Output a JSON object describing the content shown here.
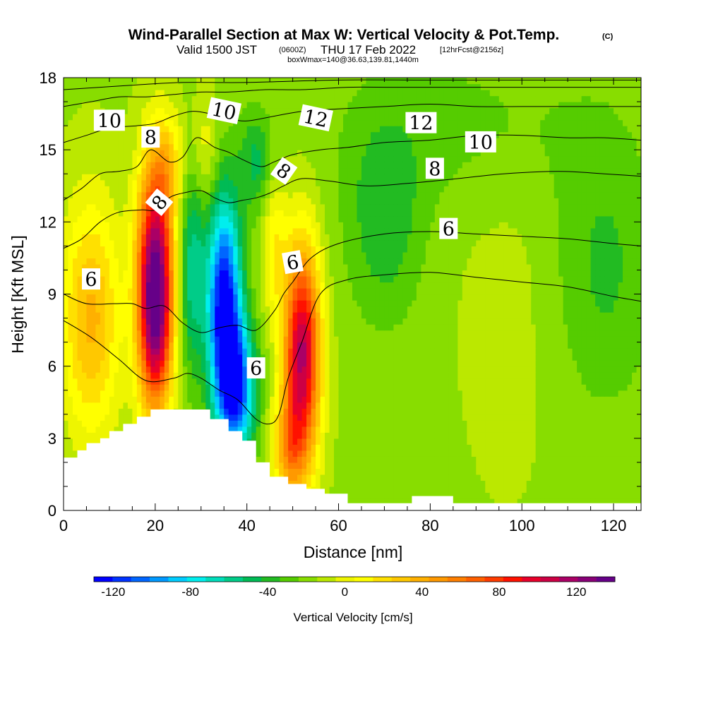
{
  "title": {
    "main": "Wind-Parallel Section at Max W: Vertical Velocity & Pot.Temp.",
    "copyright": "(C)",
    "valid_prefix": "Valid 1500 JST",
    "valid_utc": "(0600Z)",
    "valid_date": "THU 17 Feb 2022",
    "forecast": "[12hrFcst@2156z]",
    "box_info": "boxWmax=140@36.63,139.81,1440m"
  },
  "chart_data": {
    "type": "heatmap",
    "xlabel": "Distance [nm]",
    "ylabel": "Height [Kft MSL]",
    "xlim": [
      0,
      126
    ],
    "ylim": [
      0,
      18
    ],
    "x_ticks": [
      0,
      20,
      40,
      60,
      80,
      100,
      120
    ],
    "y_ticks": [
      0,
      3,
      6,
      9,
      12,
      15,
      18
    ],
    "colorbar": {
      "label": "Vertical Velocity [cm/s]",
      "min": -130,
      "max": 140,
      "step": 10,
      "tick_values": [
        -120,
        -80,
        -40,
        0,
        40,
        80,
        120
      ],
      "colors": [
        "#0000ff",
        "#0033ff",
        "#0066ff",
        "#0099ff",
        "#00ccff",
        "#00eeee",
        "#00ddbb",
        "#00cc88",
        "#00bb55",
        "#22bb22",
        "#55cc00",
        "#88dd00",
        "#bbe800",
        "#eef500",
        "#ffff00",
        "#ffe000",
        "#ffc800",
        "#ffb000",
        "#ff9900",
        "#ff7f00",
        "#ff6000",
        "#ff3c00",
        "#ff1100",
        "#e8002a",
        "#cc0044",
        "#aa0066",
        "#880077",
        "#660088"
      ]
    },
    "w_field_centers": [
      {
        "x": 6,
        "y": 8.0,
        "w": 55,
        "sx": 4.5,
        "sy": 3.5
      },
      {
        "x": 20,
        "y": 10.0,
        "w": 140,
        "sx": 2.8,
        "sy": 3.2
      },
      {
        "x": 20,
        "y": 7.0,
        "w": 60,
        "sx": 2.5,
        "sy": 2.5
      },
      {
        "x": 23,
        "y": 14.5,
        "w": 30,
        "sx": 2.5,
        "sy": 1.5
      },
      {
        "x": 31,
        "y": 15.0,
        "w": 20,
        "sx": 2.0,
        "sy": 1.8
      },
      {
        "x": 35,
        "y": 8.5,
        "w": -120,
        "sx": 2.6,
        "sy": 3.2
      },
      {
        "x": 38,
        "y": 5.0,
        "w": -90,
        "sx": 2.8,
        "sy": 2.0
      },
      {
        "x": 28,
        "y": 10.0,
        "w": -45,
        "sx": 2.0,
        "sy": 3.0
      },
      {
        "x": 52,
        "y": 6.5,
        "w": 135,
        "sx": 2.8,
        "sy": 3.2
      },
      {
        "x": 46,
        "y": 11.0,
        "w": 30,
        "sx": 1.8,
        "sy": 2.0
      },
      {
        "x": 49,
        "y": 2.5,
        "w": 50,
        "sx": 2.5,
        "sy": 1.5
      },
      {
        "x": 42,
        "y": 14.5,
        "w": -30,
        "sx": 2.5,
        "sy": 1.5
      },
      {
        "x": 70,
        "y": 12.0,
        "w": -25,
        "sx": 6.0,
        "sy": 3.0
      },
      {
        "x": 97,
        "y": 9.0,
        "w": 6,
        "sx": 8.0,
        "sy": 6.0
      },
      {
        "x": 118,
        "y": 10.0,
        "w": -20,
        "sx": 8.0,
        "sy": 4.0
      },
      {
        "x": 88,
        "y": 16.0,
        "w": -12,
        "sx": 20.0,
        "sy": 2.5
      }
    ],
    "w_background": -12,
    "terrain": [
      [
        0,
        2.2
      ],
      [
        3,
        2.5
      ],
      [
        5,
        2.8
      ],
      [
        8,
        3.0
      ],
      [
        10,
        3.3
      ],
      [
        13,
        3.6
      ],
      [
        16,
        3.9
      ],
      [
        19,
        4.2
      ],
      [
        26,
        4.2
      ],
      [
        32,
        3.8
      ],
      [
        36,
        3.3
      ],
      [
        39,
        2.9
      ],
      [
        42,
        2.0
      ],
      [
        45,
        1.4
      ],
      [
        49,
        1.1
      ],
      [
        53,
        0.9
      ],
      [
        57,
        0.7
      ],
      [
        62,
        0.3
      ],
      [
        74,
        0.3
      ],
      [
        76,
        0.6
      ],
      [
        84,
        0.6
      ],
      [
        85,
        0.3
      ],
      [
        126,
        0.3
      ]
    ],
    "theta_contours": [
      {
        "level": "6",
        "points": [
          [
            0,
            7.9
          ],
          [
            6,
            7.2
          ],
          [
            12,
            6.3
          ],
          [
            18,
            5.4
          ],
          [
            24,
            5.5
          ],
          [
            27,
            5.7
          ],
          [
            30,
            5.5
          ],
          [
            34,
            5.0
          ],
          [
            38,
            4.6
          ],
          [
            42,
            3.8
          ],
          [
            45,
            3.6
          ],
          [
            47,
            4.0
          ],
          [
            49,
            5.5
          ],
          [
            52,
            7.0
          ],
          [
            56,
            9.0
          ],
          [
            62,
            9.6
          ],
          [
            70,
            9.8
          ],
          [
            80,
            9.9
          ],
          [
            90,
            9.7
          ],
          [
            100,
            9.5
          ],
          [
            110,
            9.3
          ],
          [
            120,
            8.9
          ],
          [
            126,
            8.7
          ]
        ]
      },
      {
        "level": "6",
        "points": [
          [
            0,
            9.0
          ],
          [
            5,
            8.6
          ],
          [
            11,
            8.6
          ],
          [
            15,
            8.6
          ],
          [
            18,
            8.4
          ],
          [
            22,
            8.5
          ],
          [
            26,
            7.8
          ],
          [
            30,
            7.4
          ],
          [
            34,
            7.6
          ],
          [
            38,
            7.7
          ],
          [
            42,
            7.5
          ],
          [
            46,
            8.3
          ],
          [
            48,
            9.0
          ],
          [
            50,
            9.5
          ],
          [
            54,
            10.5
          ],
          [
            60,
            11.1
          ],
          [
            70,
            11.5
          ],
          [
            80,
            11.6
          ],
          [
            90,
            11.5
          ],
          [
            100,
            11.4
          ],
          [
            110,
            11.3
          ],
          [
            120,
            11.1
          ],
          [
            126,
            11.0
          ]
        ]
      },
      {
        "level": "6",
        "points": [
          [
            0,
            10.9
          ],
          [
            4,
            11.3
          ],
          [
            8,
            12.0
          ],
          [
            12,
            12.4
          ],
          [
            17,
            12.5
          ],
          [
            20,
            12.5
          ],
          [
            23,
            13.0
          ],
          [
            26,
            13.2
          ],
          [
            30,
            13.3
          ],
          [
            33,
            13.0
          ],
          [
            36,
            12.8
          ],
          [
            39,
            12.9
          ],
          [
            42,
            13.0
          ],
          [
            45,
            13.2
          ],
          [
            48,
            13.5
          ],
          [
            52,
            13.8
          ],
          [
            58,
            13.7
          ],
          [
            66,
            13.5
          ],
          [
            75,
            13.6
          ],
          [
            86,
            13.8
          ],
          [
            96,
            14.0
          ],
          [
            108,
            14.1
          ],
          [
            118,
            14.0
          ],
          [
            126,
            13.9
          ]
        ]
      },
      {
        "level": "8",
        "points": [
          [
            0,
            12.9
          ],
          [
            4,
            13.4
          ],
          [
            8,
            14.0
          ],
          [
            12,
            14.1
          ],
          [
            16,
            14.3
          ],
          [
            19,
            15.0
          ],
          [
            23,
            14.5
          ],
          [
            26,
            14.7
          ],
          [
            29,
            15.5
          ],
          [
            33,
            15.1
          ],
          [
            36,
            14.9
          ],
          [
            39,
            14.6
          ],
          [
            43,
            14.3
          ],
          [
            46,
            14.5
          ],
          [
            50,
            14.8
          ],
          [
            56,
            15.0
          ],
          [
            62,
            15.1
          ],
          [
            70,
            15.3
          ],
          [
            80,
            15.4
          ],
          [
            90,
            15.6
          ],
          [
            100,
            15.6
          ],
          [
            110,
            15.5
          ],
          [
            118,
            15.5
          ],
          [
            126,
            15.4
          ]
        ]
      },
      {
        "level": "10",
        "points": [
          [
            0,
            15.3
          ],
          [
            5,
            15.6
          ],
          [
            10,
            15.9
          ],
          [
            16,
            16.0
          ],
          [
            20,
            16.1
          ],
          [
            24,
            16.4
          ],
          [
            28,
            16.6
          ],
          [
            32,
            16.5
          ],
          [
            36,
            16.3
          ],
          [
            40,
            16.2
          ],
          [
            46,
            16.4
          ],
          [
            52,
            16.6
          ],
          [
            60,
            16.7
          ],
          [
            70,
            16.8
          ],
          [
            80,
            16.9
          ],
          [
            90,
            16.8
          ],
          [
            100,
            16.8
          ],
          [
            110,
            16.8
          ],
          [
            120,
            16.8
          ],
          [
            126,
            16.8
          ]
        ]
      },
      {
        "level": "12",
        "points": [
          [
            0,
            16.8
          ],
          [
            6,
            17.0
          ],
          [
            12,
            17.2
          ],
          [
            18,
            17.2
          ],
          [
            24,
            17.3
          ],
          [
            30,
            17.4
          ],
          [
            36,
            17.4
          ],
          [
            44,
            17.5
          ],
          [
            52,
            17.5
          ],
          [
            62,
            17.6
          ],
          [
            72,
            17.6
          ],
          [
            84,
            17.6
          ],
          [
            96,
            17.6
          ],
          [
            110,
            17.6
          ],
          [
            126,
            17.6
          ]
        ]
      },
      {
        "level": "",
        "points": [
          [
            0,
            17.5
          ],
          [
            8,
            17.6
          ],
          [
            16,
            17.7
          ],
          [
            26,
            17.8
          ],
          [
            40,
            17.8
          ],
          [
            60,
            17.9
          ],
          [
            80,
            17.9
          ],
          [
            100,
            17.9
          ],
          [
            126,
            17.9
          ]
        ]
      }
    ],
    "contour_labels": [
      {
        "text": "10",
        "x": 10,
        "y": 16.2,
        "angle": 0
      },
      {
        "text": "8",
        "x": 19,
        "y": 15.5,
        "angle": 0
      },
      {
        "text": "10",
        "x": 35,
        "y": 16.6,
        "angle": 12
      },
      {
        "text": "12",
        "x": 55,
        "y": 16.3,
        "angle": 12
      },
      {
        "text": "12",
        "x": 78,
        "y": 16.1,
        "angle": 0
      },
      {
        "text": "10",
        "x": 91,
        "y": 15.3,
        "angle": 0
      },
      {
        "text": "8",
        "x": 48,
        "y": 14.1,
        "angle": 35
      },
      {
        "text": "8",
        "x": 81,
        "y": 14.2,
        "angle": 0
      },
      {
        "text": "8",
        "x": 21,
        "y": 12.8,
        "angle": -50
      },
      {
        "text": "6",
        "x": 84,
        "y": 11.7,
        "angle": 0
      },
      {
        "text": "6",
        "x": 50,
        "y": 10.3,
        "angle": -10
      },
      {
        "text": "6",
        "x": 6,
        "y": 9.6,
        "angle": 0
      },
      {
        "text": "6",
        "x": 42,
        "y": 5.9,
        "angle": 0
      }
    ]
  }
}
